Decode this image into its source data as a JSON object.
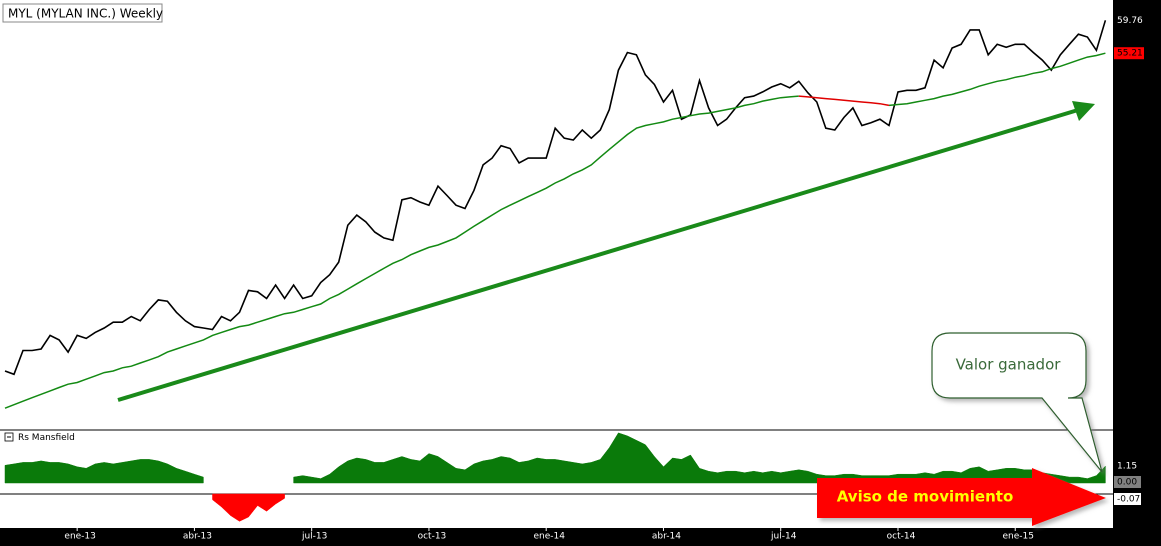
{
  "chart_data": [
    {
      "type": "line",
      "title": "MYL (MYLAN INC.) Weekly",
      "log_scale": true,
      "ylim": [
        22.3,
        62
      ],
      "series": [
        {
          "color": "#000000",
          "values": [
            25.7,
            25.5,
            27.0,
            27.0,
            27.1,
            28.0,
            27.7,
            26.9,
            28.0,
            27.8,
            28.2,
            28.5,
            28.9,
            28.9,
            29.3,
            29.0,
            29.8,
            30.5,
            30.4,
            29.6,
            29.0,
            28.6,
            28.5,
            28.4,
            29.3,
            29.0,
            29.6,
            31.2,
            31.1,
            30.6,
            31.6,
            30.6,
            31.6,
            30.6,
            30.8,
            31.8,
            32.4,
            33.4,
            36.5,
            37.4,
            36.8,
            35.9,
            35.4,
            35.2,
            38.8,
            39.0,
            38.6,
            38.3,
            40.1,
            39.2,
            38.3,
            38.0,
            39.7,
            42.2,
            42.9,
            44.2,
            43.9,
            42.4,
            42.9,
            42.9,
            42.9,
            46.1,
            45.0,
            44.8,
            45.9,
            45.0,
            45.9,
            48.2,
            53.0,
            55.3,
            55.0,
            52.4,
            51.2,
            49.1,
            50.5,
            47.1,
            47.6,
            51.7,
            48.4,
            46.4,
            47.1,
            48.4,
            49.6,
            49.8,
            50.3,
            50.9,
            51.3,
            50.8,
            51.6,
            50.2,
            49.1,
            46.1,
            45.9,
            47.3,
            48.4,
            46.4,
            46.7,
            47.1,
            46.4,
            50.3,
            50.5,
            50.5,
            50.8,
            54.3,
            53.3,
            55.9,
            56.4,
            58.4,
            58.4,
            55.0,
            56.4,
            56.0,
            56.4,
            56.4,
            55.3,
            54.3,
            53.0,
            55.0,
            56.4,
            57.8,
            57.4,
            55.6,
            59.76
          ]
        },
        {
          "color": "#138a13",
          "down_color": "#e00000",
          "values": [
            23.5,
            23.7,
            23.9,
            24.1,
            24.3,
            24.5,
            24.7,
            24.9,
            25.0,
            25.2,
            25.4,
            25.6,
            25.7,
            25.9,
            26.0,
            26.2,
            26.4,
            26.6,
            26.9,
            27.1,
            27.3,
            27.5,
            27.7,
            28.0,
            28.2,
            28.4,
            28.6,
            28.7,
            28.9,
            29.1,
            29.3,
            29.5,
            29.6,
            29.8,
            30.0,
            30.2,
            30.6,
            30.9,
            31.3,
            31.7,
            32.1,
            32.5,
            32.9,
            33.3,
            33.6,
            34.0,
            34.3,
            34.6,
            34.8,
            35.1,
            35.4,
            35.9,
            36.4,
            36.9,
            37.4,
            37.9,
            38.3,
            38.7,
            39.1,
            39.5,
            39.9,
            40.4,
            40.8,
            41.3,
            41.7,
            42.2,
            43.0,
            43.8,
            44.6,
            45.4,
            46.1,
            46.4,
            46.6,
            46.8,
            47.1,
            47.3,
            47.5,
            47.7,
            47.8,
            48.0,
            48.2,
            48.4,
            48.7,
            48.9,
            49.2,
            49.4,
            49.6,
            49.7,
            49.8,
            49.7,
            49.6,
            49.5,
            49.4,
            49.3,
            49.2,
            49.1,
            49.0,
            48.9,
            48.7,
            48.8,
            48.9,
            49.1,
            49.3,
            49.5,
            49.8,
            50.0,
            50.3,
            50.6,
            51.0,
            51.3,
            51.6,
            51.8,
            52.1,
            52.3,
            52.6,
            52.8,
            53.2,
            53.5,
            53.9,
            54.3,
            54.7,
            54.9,
            55.21
          ]
        }
      ]
    },
    {
      "type": "area",
      "title": "Rs Mansfield",
      "color": "#0a7a0a",
      "negative_color": "#ff0000",
      "ylim": [
        -2.3,
        3.6
      ],
      "yticks": [
        {
          "value": 0,
          "label": "0.00"
        },
        {
          "value": -0.07,
          "label": "-0.07"
        }
      ],
      "categories": [
        null,
        null,
        null,
        null,
        null,
        null,
        null,
        null,
        "ene-13",
        null,
        null,
        null,
        null,
        null,
        null,
        null,
        null,
        null,
        null,
        null,
        null,
        "abr-13",
        null,
        null,
        null,
        null,
        null,
        null,
        null,
        null,
        null,
        null,
        null,
        null,
        "jul-13",
        null,
        null,
        null,
        null,
        null,
        null,
        null,
        null,
        null,
        null,
        null,
        null,
        "oct-13",
        null,
        null,
        null,
        null,
        null,
        null,
        null,
        null,
        null,
        null,
        null,
        null,
        "ene-14",
        null,
        null,
        null,
        null,
        null,
        null,
        null,
        null,
        null,
        null,
        null,
        null,
        "abr-14",
        null,
        null,
        null,
        null,
        null,
        null,
        null,
        null,
        null,
        null,
        null,
        null,
        "jul-14",
        null,
        null,
        null,
        null,
        null,
        null,
        null,
        null,
        null,
        null,
        null,
        null,
        "oct-14",
        null,
        null,
        null,
        null,
        null,
        null,
        null,
        null,
        null,
        null,
        null,
        null,
        "ene-15",
        null,
        null,
        null,
        null,
        null,
        null,
        null,
        null,
        null,
        null
      ],
      "values": [
        1.2,
        1.3,
        1.4,
        1.4,
        1.5,
        1.4,
        1.4,
        1.3,
        1.1,
        1.0,
        1.3,
        1.4,
        1.3,
        1.4,
        1.5,
        1.6,
        1.6,
        1.5,
        1.3,
        1.0,
        0.8,
        0.6,
        0.4,
        -0.4,
        -0.9,
        -1.5,
        -1.9,
        -1.6,
        -0.8,
        -1.2,
        -0.7,
        -0.3,
        0.4,
        0.5,
        0.4,
        0.3,
        0.6,
        1.1,
        1.5,
        1.7,
        1.6,
        1.4,
        1.4,
        1.6,
        1.8,
        1.6,
        1.5,
        2.0,
        1.8,
        1.4,
        1.0,
        0.9,
        1.3,
        1.5,
        1.6,
        1.8,
        1.7,
        1.4,
        1.5,
        1.7,
        1.6,
        1.6,
        1.5,
        1.4,
        1.3,
        1.4,
        1.6,
        2.4,
        3.4,
        3.2,
        2.9,
        2.6,
        1.8,
        1.1,
        1.7,
        1.6,
        1.9,
        1.0,
        0.8,
        0.7,
        0.8,
        0.8,
        0.7,
        0.8,
        0.7,
        0.8,
        0.7,
        0.8,
        0.9,
        0.8,
        0.6,
        0.5,
        0.5,
        0.6,
        0.6,
        0.5,
        0.5,
        0.5,
        0.5,
        0.6,
        0.6,
        0.6,
        0.7,
        0.6,
        0.8,
        0.8,
        0.7,
        1.0,
        1.1,
        0.8,
        0.9,
        1.0,
        1.0,
        0.9,
        0.9,
        0.7,
        0.6,
        0.5,
        0.4,
        0.4,
        0.3,
        0.5,
        1.15
      ]
    }
  ],
  "annotations": {
    "callout": "Valor ganador",
    "warning": "Aviso de movimiento"
  }
}
